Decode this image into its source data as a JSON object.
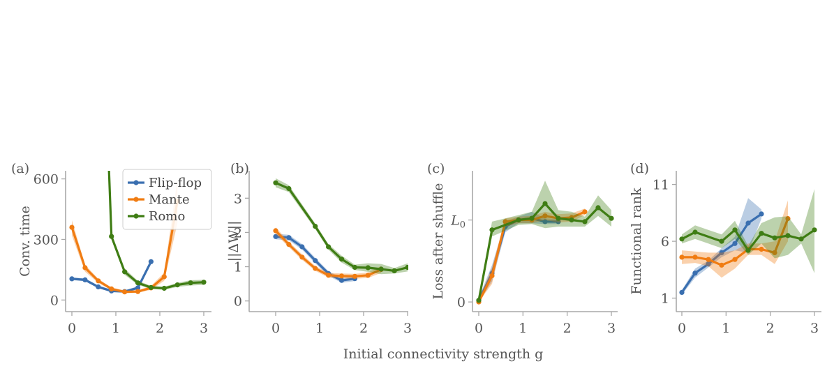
{
  "figure": {
    "xlabel": "Initial connectivity strength g"
  },
  "legend": {
    "entries": [
      {
        "name": "Flip-flop",
        "color": "#3a6fb0"
      },
      {
        "name": "Mante",
        "color": "#f07c12"
      },
      {
        "name": "Romo",
        "color": "#3f7d14"
      }
    ]
  },
  "chart_data": [
    {
      "type": "line",
      "panel_label": "(a)",
      "ylabel": "Conv. time",
      "xlim": [
        0,
        3
      ],
      "ylim": [
        -30,
        640
      ],
      "xticks": [
        0,
        1,
        2,
        3
      ],
      "xtick_labels": [
        "0",
        "1",
        "2",
        "3"
      ],
      "yticks": [
        0,
        300,
        600
      ],
      "ytick_labels": [
        "0",
        "300",
        "600"
      ],
      "legend_position": "top-right",
      "series": [
        {
          "name": "Flip-flop",
          "color": "#3a6fb0",
          "x": [
            0,
            0.3,
            0.6,
            0.9,
            1.2,
            1.5,
            1.8
          ],
          "y": [
            105,
            100,
            65,
            45,
            42,
            60,
            190
          ],
          "band": [
            [
              98,
              112
            ],
            [
              93,
              107
            ],
            [
              58,
              72
            ],
            [
              38,
              52
            ],
            [
              36,
              48
            ],
            [
              52,
              68
            ],
            [
              182,
              198
            ]
          ]
        },
        {
          "name": "Mante",
          "color": "#f07c12",
          "x": [
            0,
            0.3,
            0.6,
            0.9,
            1.2,
            1.5,
            1.8,
            2.1,
            2.4
          ],
          "y": [
            360,
            160,
            95,
            55,
            40,
            42,
            60,
            115,
            490
          ],
          "band": [
            [
              320,
              395
            ],
            [
              140,
              175
            ],
            [
              85,
              105
            ],
            [
              48,
              62
            ],
            [
              34,
              48
            ],
            [
              36,
              48
            ],
            [
              50,
              70
            ],
            [
              95,
              135
            ],
            [
              380,
              600
            ]
          ]
        },
        {
          "name": "Romo",
          "color": "#3f7d14",
          "x": [
            0.8,
            0.9,
            1.2,
            1.5,
            1.8,
            2.1,
            2.4,
            2.7,
            3.0
          ],
          "y": [
            900,
            315,
            140,
            85,
            62,
            58,
            75,
            85,
            88
          ],
          "band": [
            [
              890,
              910
            ],
            [
              300,
              330
            ],
            [
              125,
              155
            ],
            [
              75,
              95
            ],
            [
              55,
              70
            ],
            [
              50,
              66
            ],
            [
              65,
              85
            ],
            [
              72,
              98
            ],
            [
              75,
              100
            ]
          ]
        }
      ]
    },
    {
      "type": "line",
      "panel_label": "(b)",
      "ylabel": "||ΔW||",
      "xlim": [
        0,
        3
      ],
      "ylim": [
        -0.15,
        3.8
      ],
      "xticks": [
        0,
        1,
        2,
        3
      ],
      "xtick_labels": [
        "0",
        "1",
        "2",
        "3"
      ],
      "yticks": [
        0,
        1,
        2,
        3
      ],
      "ytick_labels": [
        "0",
        "1",
        "2",
        "3"
      ],
      "series": [
        {
          "name": "Flip-flop",
          "color": "#3a6fb0",
          "x": [
            0,
            0.3,
            0.6,
            0.9,
            1.2,
            1.5,
            1.8
          ],
          "y": [
            1.88,
            1.85,
            1.58,
            1.18,
            0.8,
            0.6,
            0.65
          ],
          "band": [
            [
              1.8,
              1.96
            ],
            [
              1.77,
              1.93
            ],
            [
              1.5,
              1.66
            ],
            [
              1.1,
              1.26
            ],
            [
              0.73,
              0.87
            ],
            [
              0.53,
              0.67
            ],
            [
              0.58,
              0.72
            ]
          ]
        },
        {
          "name": "Mante",
          "color": "#f07c12",
          "x": [
            0,
            0.3,
            0.6,
            0.9,
            1.2,
            1.5,
            1.8,
            2.1,
            2.4
          ],
          "y": [
            2.05,
            1.65,
            1.28,
            0.95,
            0.75,
            0.73,
            0.72,
            0.75,
            0.92
          ],
          "band": [
            [
              1.95,
              2.15
            ],
            [
              1.57,
              1.73
            ],
            [
              1.2,
              1.36
            ],
            [
              0.88,
              1.02
            ],
            [
              0.68,
              0.82
            ],
            [
              0.66,
              0.8
            ],
            [
              0.65,
              0.79
            ],
            [
              0.67,
              0.83
            ],
            [
              0.82,
              1.02
            ]
          ]
        },
        {
          "name": "Romo",
          "color": "#3f7d14",
          "x": [
            0,
            0.3,
            0.9,
            1.2,
            1.5,
            1.8,
            2.1,
            2.4,
            2.7,
            3.0
          ],
          "y": [
            3.45,
            3.28,
            2.18,
            1.58,
            1.22,
            0.98,
            0.97,
            0.93,
            0.88,
            0.98
          ],
          "band": [
            [
              3.32,
              3.58
            ],
            [
              3.18,
              3.38
            ],
            [
              2.1,
              2.26
            ],
            [
              1.5,
              1.66
            ],
            [
              1.12,
              1.32
            ],
            [
              0.9,
              1.06
            ],
            [
              0.85,
              1.1
            ],
            [
              0.78,
              1.08
            ],
            [
              0.8,
              0.96
            ],
            [
              0.86,
              1.1
            ]
          ]
        }
      ]
    },
    {
      "type": "line",
      "panel_label": "(c)",
      "ylabel": "Loss after shuffle",
      "xlim": [
        0,
        3
      ],
      "ylim": [
        -0.05,
        1.6
      ],
      "xticks": [
        0,
        1,
        2,
        3
      ],
      "xtick_labels": [
        "0",
        "1",
        "2",
        "3"
      ],
      "yticks": [
        0,
        1
      ],
      "ytick_labels": [
        "0",
        "L0"
      ],
      "series": [
        {
          "name": "Flip-flop",
          "color": "#3a6fb0",
          "x": [
            0,
            0.3,
            0.6,
            0.9,
            1.2,
            1.5,
            1.8
          ],
          "y": [
            0.02,
            0.35,
            0.92,
            1.0,
            1.02,
            0.98,
            0.98
          ],
          "band": [
            [
              0,
              0.05
            ],
            [
              0.25,
              0.45
            ],
            [
              0.85,
              0.98
            ],
            [
              0.96,
              1.04
            ],
            [
              0.96,
              1.1
            ],
            [
              0.95,
              1.02
            ],
            [
              0.95,
              1.01
            ]
          ]
        },
        {
          "name": "Mante",
          "color": "#f07c12",
          "x": [
            0,
            0.3,
            0.6,
            0.9,
            1.2,
            1.5,
            1.8,
            2.1,
            2.4
          ],
          "y": [
            0,
            0.32,
            0.98,
            1.0,
            1.0,
            1.05,
            1.02,
            1.03,
            1.1
          ],
          "band": [
            [
              0,
              0.03
            ],
            [
              0.22,
              0.42
            ],
            [
              0.92,
              1.02
            ],
            [
              0.96,
              1.04
            ],
            [
              0.96,
              1.05
            ],
            [
              1.0,
              1.1
            ],
            [
              0.97,
              1.07
            ],
            [
              0.98,
              1.08
            ],
            [
              1.06,
              1.14
            ]
          ]
        },
        {
          "name": "Romo",
          "color": "#3f7d14",
          "x": [
            0,
            0.3,
            0.9,
            1.2,
            1.5,
            1.8,
            2.1,
            2.4,
            2.7,
            3.0
          ],
          "y": [
            0.02,
            0.88,
            1.0,
            1.02,
            1.2,
            1.02,
            1.0,
            0.98,
            1.15,
            1.02
          ],
          "band": [
            [
              0,
              0.05
            ],
            [
              0.8,
              0.98
            ],
            [
              0.94,
              1.06
            ],
            [
              0.95,
              1.1
            ],
            [
              0.9,
              1.48
            ],
            [
              0.92,
              1.12
            ],
            [
              0.92,
              1.1
            ],
            [
              0.92,
              1.04
            ],
            [
              1.05,
              1.3
            ],
            [
              0.92,
              1.12
            ]
          ]
        }
      ]
    },
    {
      "type": "line",
      "panel_label": "(d)",
      "ylabel": "Functional rank",
      "xlim": [
        0,
        3
      ],
      "ylim": [
        0.3,
        12.2
      ],
      "xticks": [
        0,
        1,
        2,
        3
      ],
      "xtick_labels": [
        "0",
        "1",
        "2",
        "3"
      ],
      "yticks": [
        1,
        6,
        11
      ],
      "ytick_labels": [
        "1",
        "6",
        "11"
      ],
      "series": [
        {
          "name": "Flip-flop",
          "color": "#3a6fb0",
          "x": [
            0,
            0.3,
            0.6,
            0.9,
            1.2,
            1.5,
            1.8
          ],
          "y": [
            1.5,
            3.2,
            4.0,
            5.0,
            5.8,
            7.6,
            8.4
          ],
          "band": [
            [
              1.3,
              1.7
            ],
            [
              2.8,
              3.6
            ],
            [
              3.7,
              4.3
            ],
            [
              4.6,
              5.4
            ],
            [
              5.2,
              6.4
            ],
            [
              5.0,
              9.8
            ],
            [
              8.0,
              8.8
            ]
          ]
        },
        {
          "name": "Mante",
          "color": "#f07c12",
          "x": [
            0,
            0.3,
            0.6,
            0.9,
            1.2,
            1.5,
            1.8,
            2.1,
            2.4
          ],
          "y": [
            4.6,
            4.6,
            4.4,
            3.9,
            4.4,
            5.3,
            5.3,
            5.0,
            8.0
          ],
          "band": [
            [
              4.0,
              5.2
            ],
            [
              4.1,
              5.1
            ],
            [
              3.8,
              5.0
            ],
            [
              2.8,
              5.0
            ],
            [
              3.6,
              5.2
            ],
            [
              4.8,
              5.8
            ],
            [
              4.8,
              5.8
            ],
            [
              4.0,
              6.0
            ],
            [
              6.0,
              9.6
            ]
          ]
        },
        {
          "name": "Romo",
          "color": "#3f7d14",
          "x": [
            0,
            0.3,
            0.9,
            1.2,
            1.5,
            1.8,
            2.1,
            2.4,
            2.7,
            3.0
          ],
          "y": [
            6.2,
            6.8,
            6.0,
            7.0,
            5.2,
            6.7,
            6.3,
            6.5,
            6.2,
            7.0
          ],
          "band": [
            [
              5.8,
              6.6
            ],
            [
              6.2,
              7.4
            ],
            [
              5.4,
              6.6
            ],
            [
              6.2,
              7.8
            ],
            [
              4.8,
              5.6
            ],
            [
              5.8,
              7.6
            ],
            [
              4.5,
              8.1
            ],
            [
              4.8,
              8.2
            ],
            [
              5.8,
              6.6
            ],
            [
              3.2,
              10.6
            ]
          ]
        }
      ]
    }
  ]
}
